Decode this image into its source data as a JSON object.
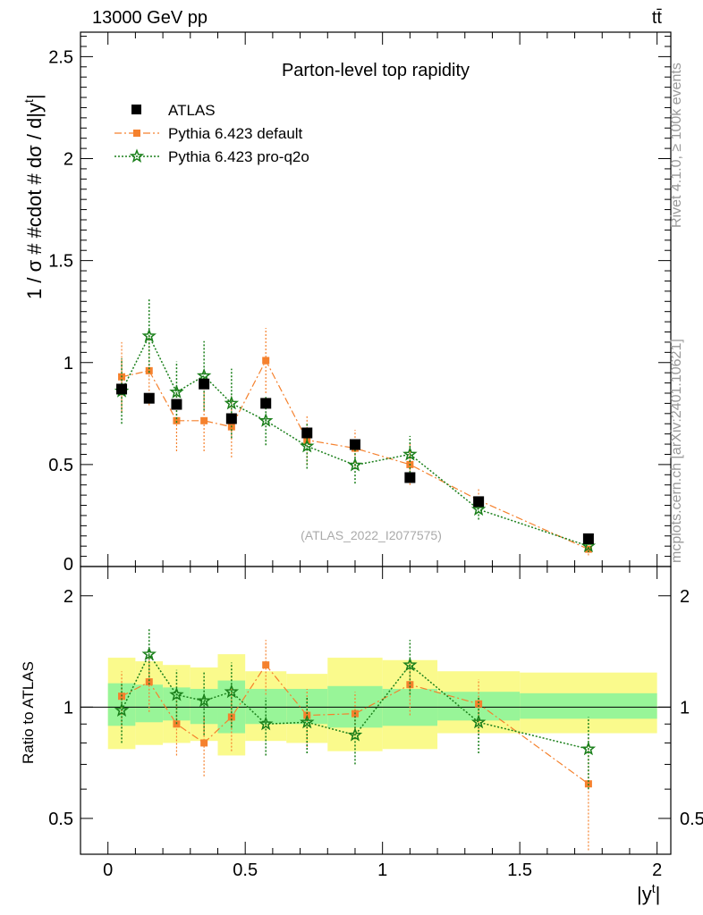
{
  "header": {
    "energy_label": "13000 GeV pp",
    "process_label": "tt̄"
  },
  "side_notes": {
    "rivet": "Rivet 4.1.0, ≥ 100k events",
    "mcplots": "mcplots.cern.ch [arXiv:2401.10621]"
  },
  "colors": {
    "atlas": "#000000",
    "default": "#f5812d",
    "proq2o": "#1a7f1a",
    "band_inner": "#98f598",
    "band_outer": "#fafa8c"
  },
  "chart_data": [
    {
      "type": "scatter",
      "title": "Parton-level top rapidity",
      "ylabel": "1 / σ # #cdot # dσ / d|y",
      "ylabel_sup": "t",
      "ylabel_end": "|",
      "xlabel": "",
      "xlim": [
        -0.1,
        2.05
      ],
      "ylim": [
        0,
        2.62
      ],
      "yticks": [
        0.5,
        1,
        1.5,
        2,
        2.5
      ],
      "ytick_labels": [
        "0.5",
        "1",
        "1.5",
        "2",
        "2.5"
      ],
      "y_bottom_label": "0",
      "reference": "(ATLAS_2022_I2077575)",
      "legend_position": "top-left",
      "series": [
        {
          "name": "ATLAS",
          "x": [
            0.05,
            0.15,
            0.25,
            0.35,
            0.45,
            0.575,
            0.725,
            0.9,
            1.1,
            1.35,
            1.75
          ],
          "y": [
            0.87,
            0.825,
            0.795,
            0.895,
            0.725,
            0.8,
            0.655,
            0.598,
            0.436,
            0.318,
            0.136
          ]
        },
        {
          "name": "Pythia 6.423 default",
          "x": [
            0.05,
            0.15,
            0.25,
            0.35,
            0.45,
            0.575,
            0.725,
            0.9,
            1.1,
            1.35,
            1.75
          ],
          "y": [
            0.93,
            0.96,
            0.715,
            0.715,
            0.685,
            1.01,
            0.62,
            0.58,
            0.5,
            0.325,
            0.085
          ],
          "err": [
            0.17,
            0.17,
            0.15,
            0.15,
            0.15,
            0.16,
            0.12,
            0.09,
            0.1,
            0.06,
            0.03
          ]
        },
        {
          "name": "Pythia 6.423 pro-q2o",
          "x": [
            0.05,
            0.15,
            0.25,
            0.35,
            0.45,
            0.575,
            0.725,
            0.9,
            1.1,
            1.35,
            1.75
          ],
          "y": [
            0.86,
            1.13,
            0.855,
            0.935,
            0.8,
            0.715,
            0.59,
            0.497,
            0.55,
            0.28,
            0.1
          ],
          "err": [
            0.16,
            0.18,
            0.15,
            0.17,
            0.17,
            0.12,
            0.11,
            0.09,
            0.09,
            0.05,
            0.03
          ]
        }
      ]
    },
    {
      "type": "scatter",
      "title": "",
      "ylabel": "Ratio to ATLAS",
      "xlabel": "|y",
      "xlabel_sup": "t",
      "xlabel_end": "|",
      "xlim": [
        -0.1,
        2.05
      ],
      "ylim": [
        0.4,
        2.4
      ],
      "yscale": "log",
      "yticks": [
        0.5,
        1,
        2
      ],
      "ytick_labels": [
        "0.5",
        "1",
        "2"
      ],
      "xticks": [
        0,
        0.5,
        1,
        1.5,
        2
      ],
      "xtick_labels": [
        "0",
        "0.5",
        "1",
        "1.5",
        "2"
      ],
      "bins": [
        0,
        0.1,
        0.2,
        0.3,
        0.4,
        0.5,
        0.65,
        0.8,
        1.0,
        1.2,
        1.5,
        2.0
      ],
      "band_inner": [
        [
          0.89,
          1.16
        ],
        [
          0.91,
          1.15
        ],
        [
          0.92,
          1.13
        ],
        [
          0.9,
          1.12
        ],
        [
          0.85,
          1.18
        ],
        [
          0.9,
          1.12
        ],
        [
          0.9,
          1.12
        ],
        [
          0.88,
          1.14
        ],
        [
          0.89,
          1.12
        ],
        [
          0.92,
          1.1
        ],
        [
          0.93,
          1.09
        ]
      ],
      "band_outer": [
        [
          0.77,
          1.36
        ],
        [
          0.79,
          1.33
        ],
        [
          0.8,
          1.3
        ],
        [
          0.81,
          1.28
        ],
        [
          0.74,
          1.39
        ],
        [
          0.81,
          1.25
        ],
        [
          0.8,
          1.23
        ],
        [
          0.76,
          1.36
        ],
        [
          0.77,
          1.34
        ],
        [
          0.85,
          1.25
        ],
        [
          0.85,
          1.24
        ]
      ],
      "series": [
        {
          "name": "Pythia 6.423 default",
          "x": [
            0.05,
            0.15,
            0.25,
            0.35,
            0.45,
            0.575,
            0.725,
            0.9,
            1.1,
            1.35,
            1.75
          ],
          "y": [
            1.07,
            1.17,
            0.9,
            0.8,
            0.94,
            1.3,
            0.95,
            0.96,
            1.15,
            1.02,
            0.62
          ],
          "err": [
            0.18,
            0.2,
            0.16,
            0.15,
            0.18,
            0.22,
            0.17,
            0.14,
            0.2,
            0.17,
            0.21
          ]
        },
        {
          "name": "Pythia 6.423 pro-q2o",
          "x": [
            0.05,
            0.15,
            0.25,
            0.35,
            0.45,
            0.575,
            0.725,
            0.9,
            1.1,
            1.35,
            1.75
          ],
          "y": [
            0.98,
            1.39,
            1.08,
            1.04,
            1.1,
            0.9,
            0.91,
            0.84,
            1.3,
            0.91,
            0.77
          ],
          "err": [
            0.18,
            0.24,
            0.18,
            0.2,
            0.22,
            0.16,
            0.16,
            0.14,
            0.22,
            0.16,
            0.17
          ]
        }
      ]
    }
  ]
}
